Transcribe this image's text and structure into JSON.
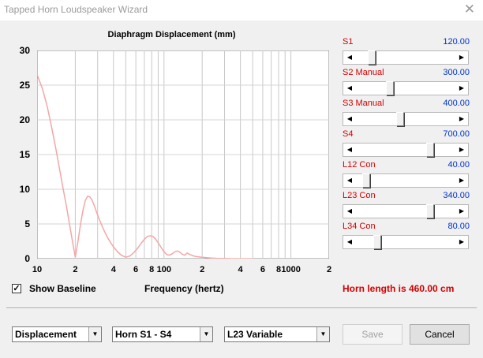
{
  "window": {
    "title": "Tapped Horn Loudspeaker Wizard",
    "close_glyph": "✕"
  },
  "chart_data": {
    "type": "line",
    "title": "Diaphragm Displacement (mm)",
    "xlabel": "Frequency (hertz)",
    "ylabel": "",
    "x_scale": "log",
    "xlim": [
      10,
      2000
    ],
    "ylim": [
      0,
      30
    ],
    "y_ticks": [
      "30",
      "25",
      "20",
      "15",
      "10",
      "5",
      "0"
    ],
    "x_ticks": [
      "10",
      "2",
      "4",
      "6",
      "8",
      "100",
      "2",
      "4",
      "6",
      "8",
      "1000",
      "2"
    ],
    "grid": true,
    "line_color": "#f4a6a6",
    "series": [
      {
        "x": [
          10,
          11,
          12,
          13,
          14,
          15,
          16,
          17,
          18,
          19,
          20,
          21,
          22,
          23,
          24,
          25,
          26,
          27,
          28,
          29,
          30,
          32,
          34,
          36,
          38,
          40,
          43,
          46,
          50,
          54,
          58,
          60,
          62,
          66,
          70,
          74,
          78,
          82,
          86,
          90,
          95,
          100,
          105,
          110,
          116,
          122,
          128,
          134,
          140,
          146,
          152,
          160,
          170,
          180,
          200,
          230,
          260,
          300,
          350,
          400,
          500
        ],
        "y": [
          26.5,
          24.5,
          22.0,
          19.0,
          16.0,
          13.0,
          10.2,
          7.6,
          5.0,
          2.5,
          0.2,
          2.5,
          5.0,
          7.0,
          8.4,
          9.0,
          8.9,
          8.5,
          7.8,
          7.0,
          6.3,
          5.0,
          3.9,
          3.0,
          2.3,
          1.7,
          1.0,
          0.5,
          0.2,
          0.4,
          0.9,
          1.2,
          1.5,
          2.2,
          2.8,
          3.2,
          3.3,
          3.2,
          2.8,
          2.3,
          1.6,
          1.0,
          0.6,
          0.5,
          0.7,
          1.0,
          1.1,
          0.9,
          0.6,
          0.5,
          0.8,
          0.6,
          0.4,
          0.3,
          0.2,
          0.1,
          0.05,
          0.02,
          0.0,
          0.0,
          0.0
        ]
      }
    ]
  },
  "params": [
    {
      "label": "S1",
      "value": "120.00",
      "position": 0.13
    },
    {
      "label": "S2  Manual",
      "value": "300.00",
      "position": 0.33
    },
    {
      "label": "S3  Manual",
      "value": "400.00",
      "position": 0.44
    },
    {
      "label": "S4",
      "value": "700.00",
      "position": 0.77
    },
    {
      "label": "L12  Con",
      "value": "40.00",
      "position": 0.07
    },
    {
      "label": "L23  Con",
      "value": "340.00",
      "position": 0.77
    },
    {
      "label": "L34  Con",
      "value": "80.00",
      "position": 0.19
    }
  ],
  "show_baseline": {
    "label": "Show Baseline",
    "checked": true,
    "mark": "✓"
  },
  "horn_length": "Horn length is 460.00 cm",
  "combos": [
    {
      "value": "Displacement"
    },
    {
      "value": "Horn S1 - S4"
    },
    {
      "value": "L23 Variable"
    }
  ],
  "buttons": {
    "save": "Save",
    "cancel": "Cancel"
  },
  "icons": {
    "arrow_left": "◀",
    "arrow_right": "▶",
    "dropdown": "▼"
  }
}
